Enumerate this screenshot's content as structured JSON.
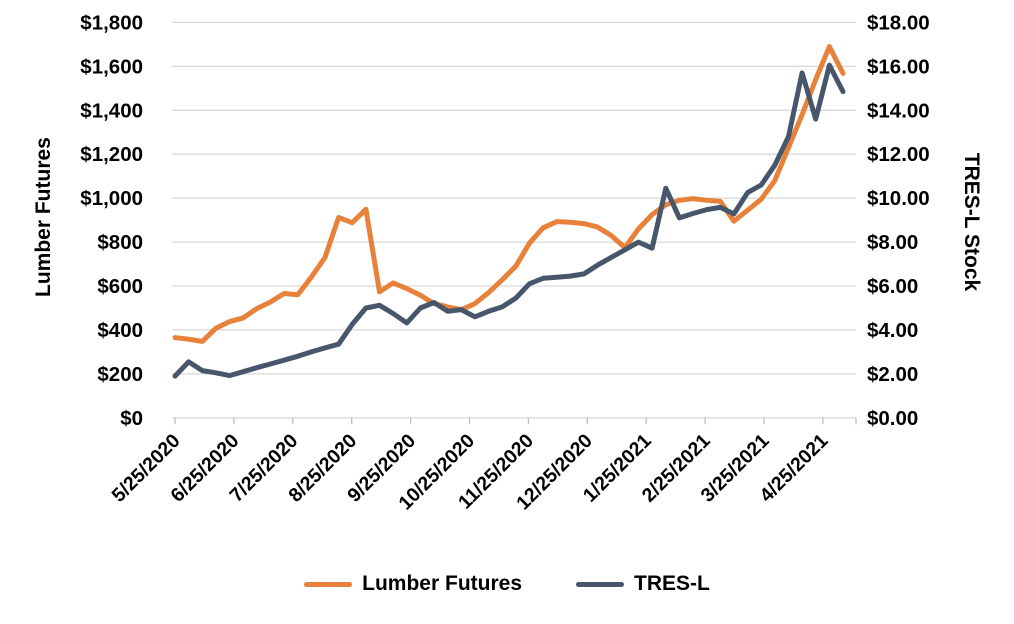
{
  "chart_data": {
    "type": "line",
    "title": "",
    "grid": true,
    "legend_position": "bottom",
    "x_dates": [
      "5/25/2020",
      "6/1/2020",
      "6/8/2020",
      "6/15/2020",
      "6/22/2020",
      "6/29/2020",
      "7/6/2020",
      "7/13/2020",
      "7/20/2020",
      "7/27/2020",
      "8/3/2020",
      "8/10/2020",
      "8/17/2020",
      "8/24/2020",
      "8/31/2020",
      "9/7/2020",
      "9/14/2020",
      "9/21/2020",
      "9/28/2020",
      "10/5/2020",
      "10/12/2020",
      "10/19/2020",
      "10/26/2020",
      "11/2/2020",
      "11/9/2020",
      "11/16/2020",
      "11/23/2020",
      "11/30/2020",
      "12/7/2020",
      "12/14/2020",
      "12/21/2020",
      "12/28/2020",
      "1/4/2021",
      "1/11/2021",
      "1/18/2021",
      "1/25/2021",
      "2/1/2021",
      "2/8/2021",
      "2/15/2021",
      "2/22/2021",
      "3/1/2021",
      "3/8/2021",
      "3/15/2021",
      "3/22/2021",
      "3/29/2021",
      "4/5/2021",
      "4/12/2021",
      "4/19/2021",
      "4/26/2021",
      "5/3/2021"
    ],
    "x_tick_labels": [
      "5/25/2020",
      "6/25/2020",
      "7/25/2020",
      "8/25/2020",
      "9/25/2020",
      "10/25/2020",
      "11/25/2020",
      "12/25/2020",
      "1/25/2021",
      "2/25/2021",
      "3/25/2021",
      "4/25/2021"
    ],
    "left_axis": {
      "title": "Lumber Futures",
      "min": 0,
      "max": 1800,
      "step": 200,
      "tick_labels": [
        "$1,800",
        "$1,600",
        "$1,400",
        "$1,200",
        "$1,000",
        "$800",
        "$600",
        "$400",
        "$200",
        "$0"
      ]
    },
    "right_axis": {
      "title": "TRES-L Stock",
      "min": 0,
      "max": 18,
      "step": 2,
      "tick_labels": [
        "$18.00",
        "$16.00",
        "$14.00",
        "$12.00",
        "$10.00",
        "$8.00",
        "$6.00",
        "$4.00",
        "$2.00",
        "$0.00"
      ]
    },
    "series": [
      {
        "name": "Lumber Futures",
        "axis": "left",
        "color": "#E8813A",
        "values": [
          365,
          358,
          348,
          408,
          438,
          455,
          497,
          527,
          566,
          560,
          640,
          730,
          912,
          888,
          949,
          573,
          614,
          588,
          558,
          520,
          505,
          492,
          520,
          570,
          628,
          690,
          795,
          865,
          893,
          890,
          884,
          868,
          830,
          775,
          860,
          925,
          970,
          990,
          998,
          990,
          985,
          895,
          945,
          995,
          1080,
          1230,
          1380,
          1540,
          1690,
          1568
        ]
      },
      {
        "name": "TRES-L",
        "axis": "right",
        "color": "#47566B",
        "values": [
          1.9,
          2.55,
          2.15,
          2.05,
          1.92,
          2.1,
          2.28,
          2.45,
          2.62,
          2.8,
          3.0,
          3.18,
          3.35,
          4.25,
          5.0,
          5.12,
          4.75,
          4.32,
          5.0,
          5.25,
          4.85,
          4.92,
          4.6,
          4.85,
          5.05,
          5.45,
          6.1,
          6.35,
          6.4,
          6.45,
          6.55,
          6.95,
          7.3,
          7.65,
          8.0,
          7.72,
          10.45,
          9.1,
          9.3,
          9.48,
          9.58,
          9.28,
          10.25,
          10.6,
          11.5,
          12.8,
          15.7,
          13.6,
          16.05,
          14.85
        ]
      }
    ],
    "gridline_color": "#D9D9D9",
    "tick_color": "#BFBFBF"
  },
  "legend": {
    "items": [
      {
        "label": "Lumber Futures",
        "color": "#E8813A"
      },
      {
        "label": "TRES-L",
        "color": "#47566B"
      }
    ]
  }
}
